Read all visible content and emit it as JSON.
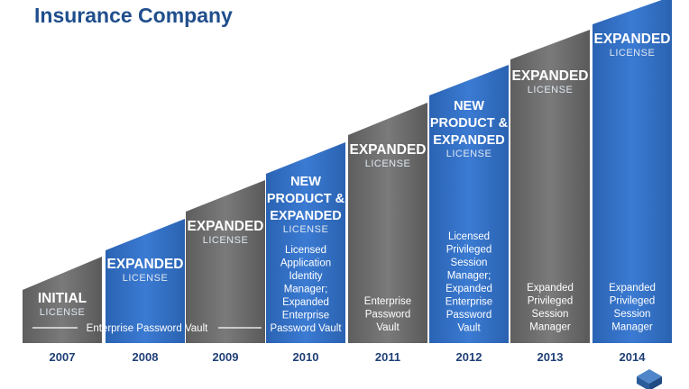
{
  "title": "Insurance Company",
  "spanning_label": "Enterprise Password Vault",
  "colors": {
    "blue": "#2f6fc6",
    "gray": "#6e6e6e",
    "title": "#1f4e8c",
    "year": "#1f3f77"
  },
  "logo_icon": "cube-logo-icon",
  "stages": [
    {
      "year": "2007",
      "heading": [
        "INITIAL"
      ],
      "subheading": "LICENSE",
      "description": [],
      "color": "gray"
    },
    {
      "year": "2008",
      "heading": [
        "EXPANDED"
      ],
      "subheading": "LICENSE",
      "description": [],
      "color": "blue"
    },
    {
      "year": "2009",
      "heading": [
        "EXPANDED"
      ],
      "subheading": "LICENSE",
      "description": [],
      "color": "gray"
    },
    {
      "year": "2010",
      "heading": [
        "NEW",
        "PRODUCT &",
        "EXPANDED"
      ],
      "subheading": "LICENSE",
      "description": [
        "Licensed",
        "Application",
        "Identity",
        "Manager;",
        "Expanded",
        "Enterprise",
        "Password Vault"
      ],
      "color": "blue"
    },
    {
      "year": "2011",
      "heading": [
        "EXPANDED"
      ],
      "subheading": "LICENSE",
      "description": [
        "Enterprise",
        "Password",
        "Vault"
      ],
      "color": "gray"
    },
    {
      "year": "2012",
      "heading": [
        "NEW",
        "PRODUCT &",
        "EXPANDED"
      ],
      "subheading": "LICENSE",
      "description": [
        "Licensed",
        "Privileged",
        "Session",
        "Manager;",
        "Expanded",
        "Enterprise",
        "Password",
        "Vault"
      ],
      "color": "blue"
    },
    {
      "year": "2013",
      "heading": [
        "EXPANDED"
      ],
      "subheading": "LICENSE",
      "description": [
        "Expanded",
        "Privileged",
        "Session",
        "Manager"
      ],
      "color": "gray"
    },
    {
      "year": "2014",
      "heading": [
        "EXPANDED"
      ],
      "subheading": "LICENSE",
      "description": [
        "Expanded",
        "Privileged",
        "Session",
        "Manager"
      ],
      "color": "blue"
    }
  ]
}
